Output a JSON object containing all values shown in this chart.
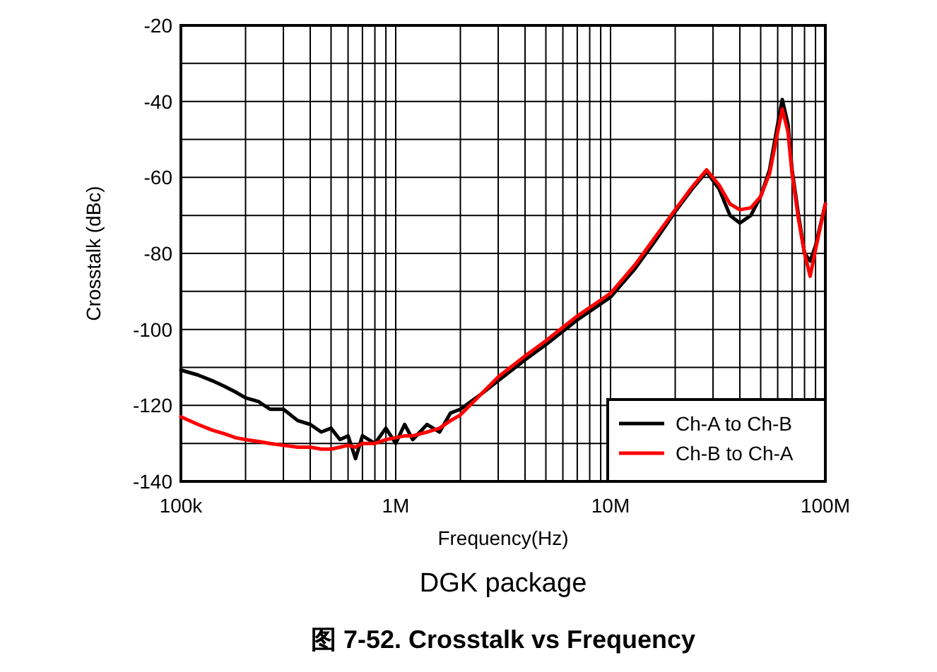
{
  "chart_data": {
    "type": "line",
    "title": "图 7-52. Crosstalk vs Frequency",
    "subtitle": "DGK package",
    "xlabel": "Frequency(Hz)",
    "ylabel": "Crosstalk (dBc)",
    "log": "x",
    "grid": true,
    "legend": "bottom right",
    "line_style": "solid",
    "xlim": [
      100000,
      100000000
    ],
    "ylim": [
      -140,
      -20
    ],
    "xticks": [
      {
        "value": 100000,
        "label": "100k"
      },
      {
        "value": 1000000,
        "label": "1M"
      },
      {
        "value": 10000000,
        "label": "10M"
      },
      {
        "value": 100000000,
        "label": "100M"
      }
    ],
    "yticks": [
      -140,
      {
        "value": -130,
        "label": null
      },
      -120,
      {
        "value": -110,
        "label": null
      },
      -100,
      {
        "value": -90,
        "label": null
      },
      -80,
      {
        "value": -70,
        "label": null
      },
      -60,
      {
        "value": -50,
        "label": null
      },
      -40,
      {
        "value": -30,
        "label": null
      },
      -20
    ],
    "x": [
      100000,
      120000,
      140000,
      160000,
      180000,
      200000,
      230000,
      260000,
      300000,
      350000,
      400000,
      450000,
      500000,
      550000,
      600000,
      650000,
      700000,
      800000,
      900000,
      1000000,
      1100000,
      1200000,
      1400000,
      1600000,
      1800000,
      2000000,
      2500000,
      3000000,
      4000000,
      5000000,
      7000000,
      10000000,
      13000000,
      16000000,
      20000000,
      24000000,
      28000000,
      32000000,
      36000000,
      40000000,
      45000000,
      50000000,
      55000000,
      60000000,
      63000000,
      67000000,
      70000000,
      75000000,
      80000000,
      85000000,
      90000000,
      100000000
    ],
    "series": [
      {
        "name": "Ch-A to Ch-B",
        "color": "#000000",
        "values": [
          -110.7,
          -112,
          -113.5,
          -115,
          -116.5,
          -118,
          -119,
          -121,
          -121,
          -124,
          -125,
          -127,
          -126,
          -129,
          -128,
          -134,
          -128,
          -130,
          -126,
          -130,
          -125,
          -129,
          -125,
          -127,
          -122,
          -121,
          -117,
          -113.5,
          -108,
          -104,
          -97.5,
          -91.5,
          -84,
          -77,
          -69,
          -63,
          -58.5,
          -63,
          -70,
          -72,
          -70,
          -65,
          -58,
          -46,
          -39.5,
          -46,
          -58,
          -70,
          -80,
          -82,
          -78,
          -67
        ]
      },
      {
        "name": "Ch-B to Ch-A",
        "color": "#ff0000",
        "values": [
          -123,
          -125,
          -126.5,
          -127.5,
          -128.5,
          -129,
          -129.5,
          -130,
          -130.5,
          -131,
          -131,
          -131.5,
          -131.5,
          -131,
          -130.5,
          -131,
          -130,
          -130,
          -129,
          -128.5,
          -128,
          -128,
          -127,
          -126,
          -124,
          -122.5,
          -117,
          -112.5,
          -107,
          -103,
          -96.5,
          -90.5,
          -83,
          -76,
          -68.5,
          -62.5,
          -58,
          -62,
          -67,
          -68.5,
          -68,
          -65,
          -59,
          -48,
          -42,
          -48,
          -59,
          -71,
          -80,
          -86,
          -79,
          -67
        ]
      }
    ]
  }
}
